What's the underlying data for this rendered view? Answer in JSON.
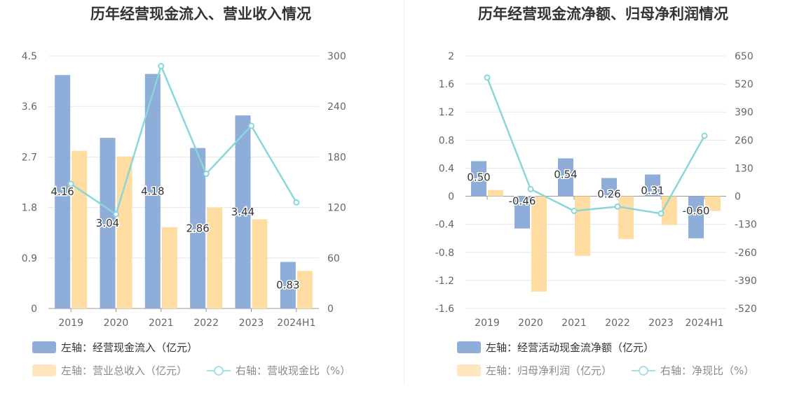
{
  "colors": {
    "bar1": "#8eadd9",
    "bar2": "#ffdca2",
    "line": "#8ad6d8",
    "grid": "#e3e7f0",
    "axis": "#999999",
    "tick": "#666666"
  },
  "chart_data": [
    {
      "type": "bar",
      "title": "历年经营现金流入、营业收入情况",
      "categories": [
        "2019",
        "2020",
        "2021",
        "2022",
        "2023",
        "2024H1"
      ],
      "left_axis": {
        "min": 0,
        "max": 4.5,
        "ticks": [
          "0",
          "0.9",
          "1.8",
          "2.7",
          "3.6",
          "4.5"
        ],
        "tick_values": [
          0,
          0.9,
          1.8,
          2.7,
          3.6,
          4.5
        ]
      },
      "right_axis": {
        "min": 0,
        "max": 300,
        "ticks": [
          "0",
          "60",
          "120",
          "180",
          "240",
          "300"
        ],
        "tick_values": [
          0,
          60,
          120,
          180,
          240,
          300
        ]
      },
      "series": [
        {
          "name": "左轴：经营现金流入（亿元）",
          "kind": "bar",
          "axis": "left",
          "values": [
            4.16,
            3.04,
            4.18,
            2.86,
            3.44,
            0.83
          ],
          "labels": [
            "4.16",
            "3.04",
            "4.18",
            "2.86",
            "3.44",
            "0.83"
          ]
        },
        {
          "name": "左轴：营业总收入（亿元）",
          "kind": "bar",
          "axis": "left",
          "values": [
            2.81,
            2.71,
            1.45,
            1.8,
            1.59,
            0.67
          ]
        },
        {
          "name": "右轴：营收现金比（%）",
          "kind": "line",
          "axis": "right",
          "values": [
            148,
            112,
            288,
            160,
            217,
            126
          ]
        }
      ]
    },
    {
      "type": "bar",
      "title": "历年经营现金流净额、归母净利润情况",
      "categories": [
        "2019",
        "2020",
        "2021",
        "2022",
        "2023",
        "2024H1"
      ],
      "left_axis": {
        "min": -1.6,
        "max": 2,
        "ticks": [
          "-1.6",
          "-1.2",
          "-0.8",
          "-0.4",
          "0",
          "0.4",
          "0.8",
          "1.2",
          "1.6",
          "2"
        ],
        "tick_values": [
          -1.6,
          -1.2,
          -0.8,
          -0.4,
          0,
          0.4,
          0.8,
          1.2,
          1.6,
          2
        ]
      },
      "right_axis": {
        "min": -520,
        "max": 650,
        "ticks": [
          "-520",
          "-390",
          "-260",
          "-130",
          "0",
          "130",
          "260",
          "390",
          "520",
          "650"
        ],
        "tick_values": [
          -520,
          -390,
          -260,
          -130,
          0,
          130,
          260,
          390,
          520,
          650
        ]
      },
      "series": [
        {
          "name": "左轴：经营活动现金流净额（亿元）",
          "kind": "bar",
          "axis": "left",
          "values": [
            0.5,
            -0.46,
            0.54,
            0.26,
            0.31,
            -0.6
          ],
          "labels": [
            "0.50",
            "-0.46",
            "0.54",
            "0.26",
            "0.31",
            "-0.60"
          ]
        },
        {
          "name": "左轴：归母净利润（亿元）",
          "kind": "bar",
          "axis": "left",
          "values": [
            0.09,
            -1.36,
            -0.85,
            -0.61,
            -0.41,
            -0.21
          ]
        },
        {
          "name": "右轴：净现比（%）",
          "kind": "line",
          "axis": "right",
          "values": [
            550,
            33,
            -68,
            -48,
            -80,
            280
          ]
        }
      ]
    }
  ]
}
